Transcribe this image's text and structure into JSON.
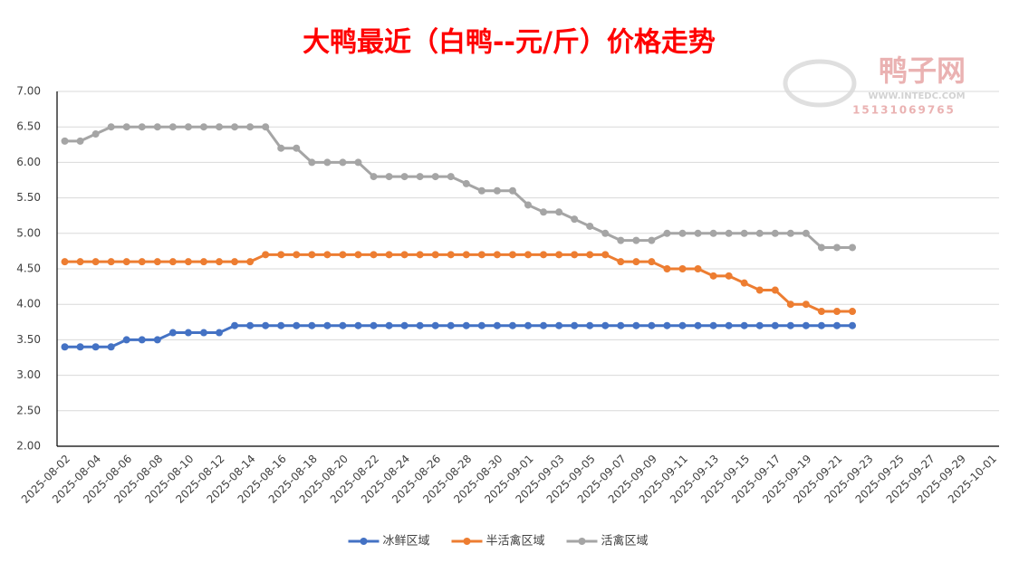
{
  "chart_data": {
    "type": "line",
    "title": "大鸭最近（白鸭--元/斤）价格走势",
    "watermark": {
      "name": "鸭子网",
      "site": "WWW.INTEDC.COM",
      "phone": "15131069765"
    },
    "categories": [
      "2025-08-02",
      null,
      "2025-08-04",
      null,
      "2025-08-06",
      null,
      "2025-08-08",
      null,
      "2025-08-10",
      null,
      "2025-08-12",
      null,
      "2025-08-14",
      null,
      "2025-08-16",
      null,
      "2025-08-18",
      null,
      "2025-08-20",
      null,
      "2025-08-22",
      null,
      "2025-08-24",
      null,
      "2025-08-26",
      null,
      "2025-08-28",
      null,
      "2025-08-30",
      null,
      "2025-09-01",
      null,
      "2025-09-03",
      null,
      "2025-09-05",
      null,
      "2025-09-07",
      null,
      "2025-09-09",
      null,
      "2025-09-11",
      null,
      "2025-09-13",
      null,
      "2025-09-15",
      null,
      "2025-09-17",
      null,
      "2025-09-19",
      null,
      "2025-09-21",
      null,
      "2025-09-23",
      null,
      "2025-09-25",
      null,
      "2025-09-27",
      null,
      "2025-09-29",
      null,
      "2025-10-01"
    ],
    "series": [
      {
        "name": "冰鲜区域",
        "color": "#4472c4",
        "values": [
          3.4,
          3.4,
          3.4,
          3.4,
          3.5,
          3.5,
          3.5,
          3.6,
          3.6,
          3.6,
          3.6,
          3.7,
          3.7,
          3.7,
          3.7,
          3.7,
          3.7,
          3.7,
          3.7,
          3.7,
          3.7,
          3.7,
          3.7,
          3.7,
          3.7,
          3.7,
          3.7,
          3.7,
          3.7,
          3.7,
          3.7,
          3.7,
          3.7,
          3.7,
          3.7,
          3.7,
          3.7,
          3.7,
          3.7,
          3.7,
          3.7,
          3.7,
          3.7,
          3.7,
          3.7,
          3.7,
          3.7,
          3.7,
          3.7,
          3.7,
          3.7,
          3.7,
          null,
          null,
          null,
          null,
          null,
          null,
          null,
          null,
          null
        ]
      },
      {
        "name": "半活禽区域",
        "color": "#ed7d31",
        "values": [
          4.6,
          4.6,
          4.6,
          4.6,
          4.6,
          4.6,
          4.6,
          4.6,
          4.6,
          4.6,
          4.6,
          4.6,
          4.6,
          4.7,
          4.7,
          4.7,
          4.7,
          4.7,
          4.7,
          4.7,
          4.7,
          4.7,
          4.7,
          4.7,
          4.7,
          4.7,
          4.7,
          4.7,
          4.7,
          4.7,
          4.7,
          4.7,
          4.7,
          4.7,
          4.7,
          4.7,
          4.6,
          4.6,
          4.6,
          4.5,
          4.5,
          4.5,
          4.4,
          4.4,
          4.3,
          4.2,
          4.2,
          4.0,
          4.0,
          3.9,
          3.9,
          3.9,
          null,
          null,
          null,
          null,
          null,
          null,
          null,
          null,
          null
        ]
      },
      {
        "name": "活禽区域",
        "color": "#a5a5a5",
        "values": [
          6.3,
          6.3,
          6.4,
          6.5,
          6.5,
          6.5,
          6.5,
          6.5,
          6.5,
          6.5,
          6.5,
          6.5,
          6.5,
          6.5,
          6.2,
          6.2,
          6.0,
          6.0,
          6.0,
          6.0,
          5.8,
          5.8,
          5.8,
          5.8,
          5.8,
          5.8,
          5.7,
          5.6,
          5.6,
          5.6,
          5.4,
          5.3,
          5.3,
          5.2,
          5.1,
          5.0,
          4.9,
          4.9,
          4.9,
          5.0,
          5.0,
          5.0,
          5.0,
          5.0,
          5.0,
          5.0,
          5.0,
          5.0,
          5.0,
          4.8,
          4.8,
          4.8,
          null,
          null,
          null,
          null,
          null,
          null,
          null,
          null,
          null
        ]
      }
    ],
    "ylim": [
      2,
      7
    ],
    "yticks": [
      {
        "value": 2,
        "label": "2.00"
      },
      {
        "value": 2.5,
        "label": "2.50"
      },
      {
        "value": 3,
        "label": "3.00"
      },
      {
        "value": 3.5,
        "label": "3.50"
      },
      {
        "value": 4,
        "label": "4.00"
      },
      {
        "value": 4.5,
        "label": "4.50"
      },
      {
        "value": 5,
        "label": "5.00"
      },
      {
        "value": 5.5,
        "label": "5.50"
      },
      {
        "value": 6,
        "label": "6.00"
      },
      {
        "value": 6.5,
        "label": "6.50"
      },
      {
        "value": 7,
        "label": "7.00"
      }
    ],
    "grid": true,
    "legend": "bottom"
  }
}
